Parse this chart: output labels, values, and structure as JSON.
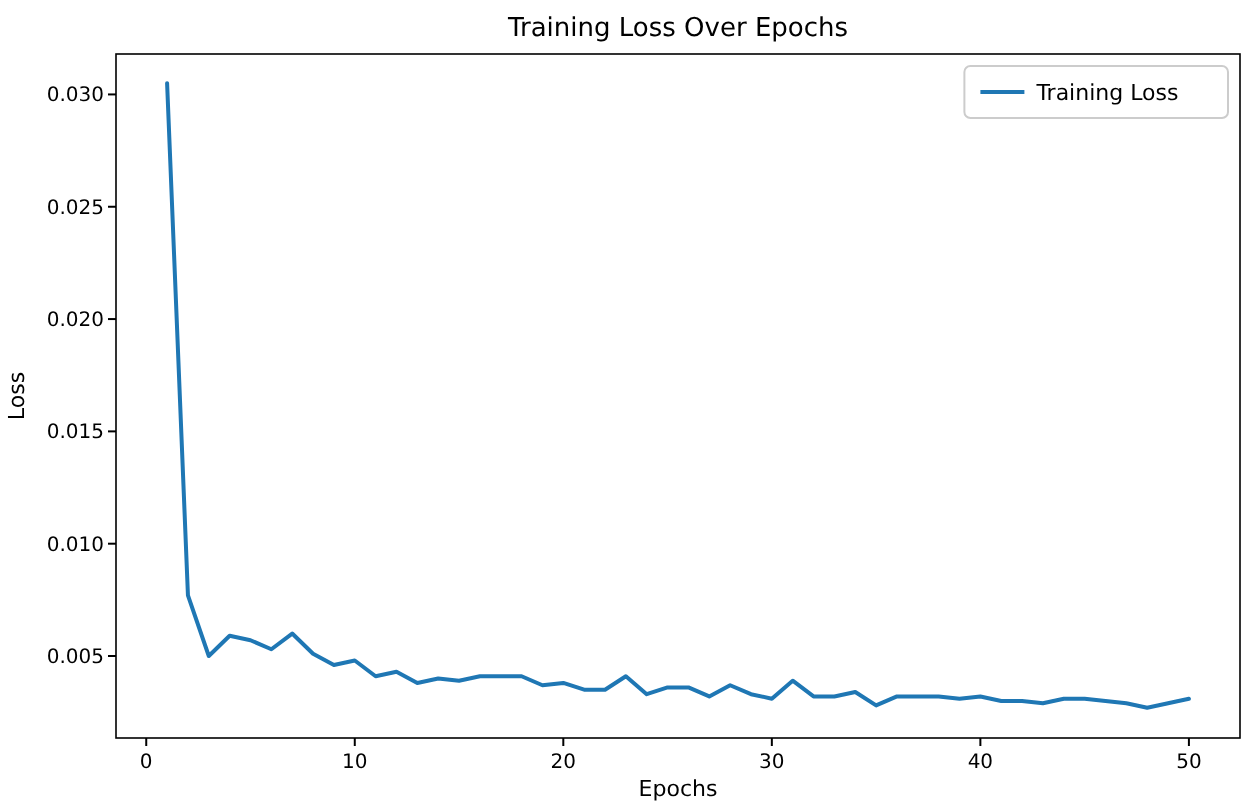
{
  "chart_data": {
    "type": "line",
    "title": "Training Loss Over Epochs",
    "xlabel": "Epochs",
    "ylabel": "Loss",
    "x": [
      1,
      2,
      3,
      4,
      5,
      6,
      7,
      8,
      9,
      10,
      11,
      12,
      13,
      14,
      15,
      16,
      17,
      18,
      19,
      20,
      21,
      22,
      23,
      24,
      25,
      26,
      27,
      28,
      29,
      30,
      31,
      32,
      33,
      34,
      35,
      36,
      37,
      38,
      39,
      40,
      41,
      42,
      43,
      44,
      45,
      46,
      47,
      48,
      49,
      50
    ],
    "series": [
      {
        "name": "Training Loss",
        "color": "#1f77b4",
        "values": [
          0.0305,
          0.0077,
          0.005,
          0.0059,
          0.0057,
          0.0053,
          0.006,
          0.0051,
          0.0046,
          0.0048,
          0.0041,
          0.0043,
          0.0038,
          0.004,
          0.0039,
          0.0041,
          0.0041,
          0.0041,
          0.0037,
          0.0038,
          0.0035,
          0.0035,
          0.0041,
          0.0033,
          0.0036,
          0.0036,
          0.0032,
          0.0037,
          0.0033,
          0.0031,
          0.0039,
          0.0032,
          0.0032,
          0.0034,
          0.0028,
          0.0032,
          0.0032,
          0.0032,
          0.0031,
          0.0032,
          0.003,
          0.003,
          0.0029,
          0.0031,
          0.0031,
          0.003,
          0.0029,
          0.0027,
          0.0029,
          0.0031
        ]
      }
    ],
    "xlim": [
      -1.45,
      52.45
    ],
    "ylim": [
      0.00135,
      0.0318
    ],
    "xticks": [
      0,
      10,
      20,
      30,
      40,
      50
    ],
    "yticks": [
      {
        "value": 0.005,
        "label": "0.005"
      },
      {
        "value": 0.01,
        "label": "0.010"
      },
      {
        "value": 0.015,
        "label": "0.015"
      },
      {
        "value": 0.02,
        "label": "0.020"
      },
      {
        "value": 0.025,
        "label": "0.025"
      },
      {
        "value": 0.03,
        "label": "0.030"
      }
    ],
    "legend": "top right",
    "grid": false,
    "marker": "none",
    "line_style": "solid"
  }
}
